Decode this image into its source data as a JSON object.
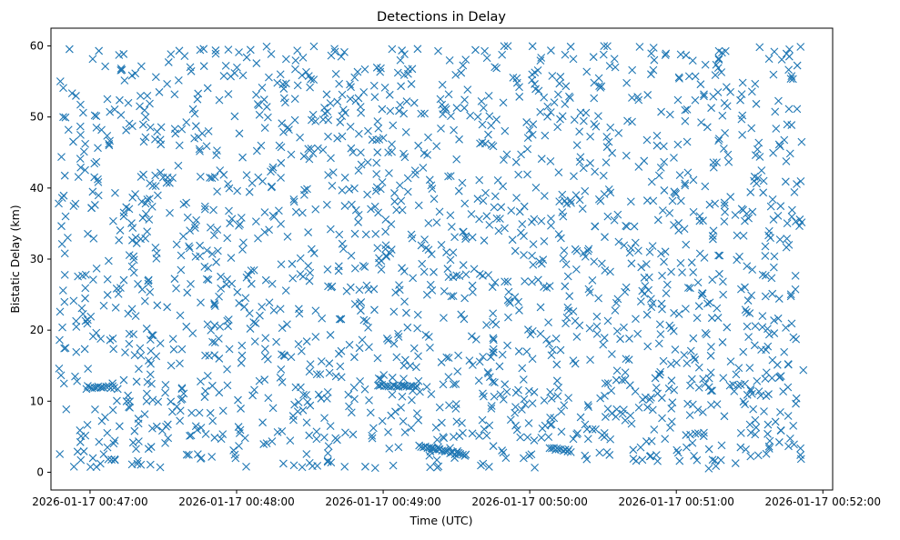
{
  "chart_data": {
    "type": "scatter",
    "title": "Detections in Delay",
    "xlabel": "Time (UTC)",
    "ylabel": "Bistatic Delay (km)",
    "x_unit": "seconds",
    "x_ticks": [
      {
        "label": "2026-01-17 00:47:00",
        "value": 0
      },
      {
        "label": "2026-01-17 00:48:00",
        "value": 60
      },
      {
        "label": "2026-01-17 00:49:00",
        "value": 120
      },
      {
        "label": "2026-01-17 00:50:00",
        "value": 180
      },
      {
        "label": "2026-01-17 00:51:00",
        "value": 240
      },
      {
        "label": "2026-01-17 00:52:00",
        "value": 300
      }
    ],
    "y_ticks": [
      0,
      10,
      20,
      30,
      40,
      50,
      60
    ],
    "xlim": [
      -16,
      304
    ],
    "ylim": [
      -2.5,
      62.5
    ],
    "marker": "x",
    "color": "#1f77b4",
    "grid": false,
    "n_random_points": 1900,
    "random_x_range": [
      -13,
      292
    ],
    "random_y_range": [
      0.5,
      60
    ],
    "dense_features": [
      {
        "x_start": -1,
        "x_end": 10,
        "y_start": 12.0,
        "y_end": 12.0,
        "count": 14
      },
      {
        "x_start": 118,
        "x_end": 134,
        "y_start": 12.3,
        "y_end": 12.0,
        "count": 20
      },
      {
        "x_start": 135,
        "x_end": 154,
        "y_start": 3.6,
        "y_end": 2.4,
        "count": 26
      },
      {
        "x_start": 188,
        "x_end": 197,
        "y_start": 3.4,
        "y_end": 3.0,
        "count": 12
      },
      {
        "x_start": 244,
        "x_end": 251,
        "y_start": 5.4,
        "y_end": 5.4,
        "count": 5
      },
      {
        "x_start": 262,
        "x_end": 268,
        "y_start": 12.3,
        "y_end": 12.3,
        "count": 5
      }
    ],
    "x_extent": [
      -13,
      292
    ],
    "y_extent": [
      0.5,
      60
    ]
  }
}
